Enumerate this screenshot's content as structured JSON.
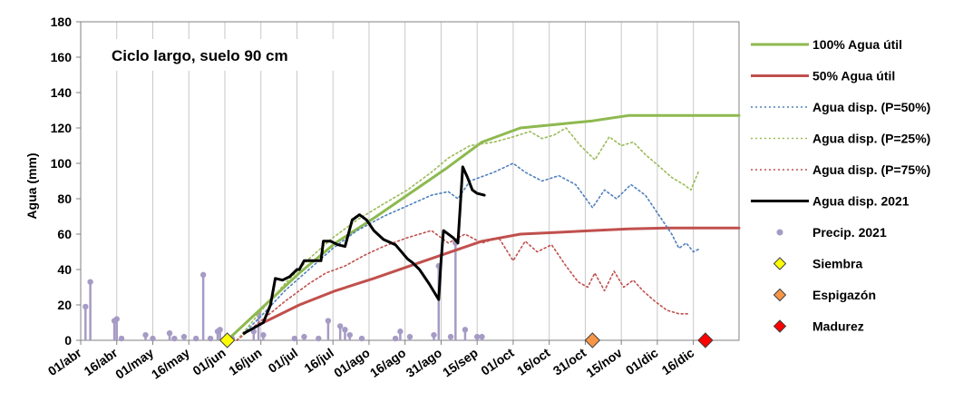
{
  "chart_data": {
    "type": "line",
    "title": "",
    "annotation": "Ciclo largo, suelo 90 cm",
    "xlabel": "",
    "ylabel": "Agua (mm)",
    "ylim": [
      0,
      180
    ],
    "yticks": [
      0,
      20,
      40,
      60,
      80,
      100,
      120,
      140,
      160,
      180
    ],
    "x_axis": {
      "type": "date",
      "start": "2021-04-01",
      "end": "2021-12-31",
      "tick_dates": [
        "2021-04-01",
        "2021-04-16",
        "2021-05-01",
        "2021-05-16",
        "2021-05-31",
        "2021-06-15",
        "2021-06-30",
        "2021-07-15",
        "2021-07-30",
        "2021-08-14",
        "2021-08-29",
        "2021-09-13",
        "2021-09-28",
        "2021-10-13",
        "2021-10-28",
        "2021-11-12",
        "2021-11-27",
        "2021-12-12"
      ],
      "tick_labels": [
        "01/abr",
        "16/abr",
        "01/may",
        "16/may",
        "01/jun",
        "16/jun",
        "01/jul",
        "16/jul",
        "01/ago",
        "16/ago",
        "31/ago",
        "15/sep",
        "01/oct",
        "16/oct",
        "31/oct",
        "15/nov",
        "01/dic",
        "16/dic"
      ]
    },
    "grid": {
      "vertical": true,
      "horizontal": false
    },
    "legend_position": "right",
    "colors": {
      "au100": "#8DB94F",
      "au50": "#C0504D",
      "p50": "#4F81BD",
      "p25": "#9BBB59",
      "p75": "#C0504D",
      "disp2021": "#000000",
      "precip": "#A69BC4",
      "siembra": "#FFFF00",
      "espigazon": "#F79646",
      "madurez": "#FF0000"
    },
    "series": [
      {
        "name": "100% Agua útil",
        "key": "au100",
        "points": [
          [
            "2021-06-01",
            0
          ],
          [
            "2021-06-16",
            19
          ],
          [
            "2021-07-01",
            38
          ],
          [
            "2021-07-16",
            55
          ],
          [
            "2021-08-01",
            69
          ],
          [
            "2021-08-16",
            83
          ],
          [
            "2021-08-31",
            97
          ],
          [
            "2021-09-15",
            112
          ],
          [
            "2021-10-01",
            120
          ],
          [
            "2021-10-16",
            122
          ],
          [
            "2021-10-31",
            124
          ],
          [
            "2021-11-15",
            127
          ],
          [
            "2021-12-01",
            127
          ],
          [
            "2021-12-16",
            127
          ],
          [
            "2021-12-31",
            127
          ]
        ]
      },
      {
        "name": "50% Agua útil",
        "key": "au50",
        "points": [
          [
            "2021-06-16",
            10
          ],
          [
            "2021-07-01",
            20
          ],
          [
            "2021-07-16",
            28
          ],
          [
            "2021-08-01",
            35
          ],
          [
            "2021-08-16",
            42
          ],
          [
            "2021-08-31",
            49
          ],
          [
            "2021-09-15",
            56
          ],
          [
            "2021-10-01",
            60
          ],
          [
            "2021-10-16",
            61
          ],
          [
            "2021-10-31",
            62
          ],
          [
            "2021-11-15",
            63
          ],
          [
            "2021-12-01",
            63.5
          ],
          [
            "2021-12-31",
            63.5
          ]
        ]
      },
      {
        "name": "Agua disp. (P=50%)",
        "key": "p50",
        "points": [
          [
            "2021-06-05",
            0
          ],
          [
            "2021-06-16",
            15
          ],
          [
            "2021-06-25",
            28
          ],
          [
            "2021-07-05",
            40
          ],
          [
            "2021-07-15",
            52
          ],
          [
            "2021-07-25",
            62
          ],
          [
            "2021-08-05",
            70
          ],
          [
            "2021-08-15",
            76
          ],
          [
            "2021-08-25",
            82
          ],
          [
            "2021-09-01",
            84
          ],
          [
            "2021-09-05",
            80
          ],
          [
            "2021-09-10",
            90
          ],
          [
            "2021-09-20",
            95
          ],
          [
            "2021-09-28",
            100
          ],
          [
            "2021-10-03",
            95
          ],
          [
            "2021-10-10",
            90
          ],
          [
            "2021-10-17",
            93
          ],
          [
            "2021-10-24",
            88
          ],
          [
            "2021-10-31",
            75
          ],
          [
            "2021-11-05",
            85
          ],
          [
            "2021-11-10",
            80
          ],
          [
            "2021-11-16",
            88
          ],
          [
            "2021-11-22",
            82
          ],
          [
            "2021-11-28",
            70
          ],
          [
            "2021-12-03",
            60
          ],
          [
            "2021-12-06",
            52
          ],
          [
            "2021-12-09",
            55
          ],
          [
            "2021-12-12",
            50
          ],
          [
            "2021-12-15",
            52
          ]
        ]
      },
      {
        "name": "Agua disp. (P=25%)",
        "key": "p25",
        "points": [
          [
            "2021-06-05",
            0
          ],
          [
            "2021-06-16",
            18
          ],
          [
            "2021-06-25",
            32
          ],
          [
            "2021-07-05",
            46
          ],
          [
            "2021-07-15",
            58
          ],
          [
            "2021-07-25",
            68
          ],
          [
            "2021-08-05",
            77
          ],
          [
            "2021-08-15",
            85
          ],
          [
            "2021-08-25",
            95
          ],
          [
            "2021-09-01",
            103
          ],
          [
            "2021-09-10",
            110
          ],
          [
            "2021-09-20",
            112
          ],
          [
            "2021-09-28",
            115
          ],
          [
            "2021-10-05",
            118
          ],
          [
            "2021-10-10",
            114
          ],
          [
            "2021-10-15",
            116
          ],
          [
            "2021-10-20",
            120
          ],
          [
            "2021-10-26",
            110
          ],
          [
            "2021-11-01",
            102
          ],
          [
            "2021-11-07",
            115
          ],
          [
            "2021-11-12",
            110
          ],
          [
            "2021-11-17",
            112
          ],
          [
            "2021-11-22",
            105
          ],
          [
            "2021-11-28",
            98
          ],
          [
            "2021-12-03",
            92
          ],
          [
            "2021-12-08",
            88
          ],
          [
            "2021-12-11",
            85
          ],
          [
            "2021-12-14",
            95
          ]
        ]
      },
      {
        "name": "Agua disp. (P=75%)",
        "key": "p75",
        "points": [
          [
            "2021-06-05",
            0
          ],
          [
            "2021-06-16",
            12
          ],
          [
            "2021-06-25",
            22
          ],
          [
            "2021-07-05",
            32
          ],
          [
            "2021-07-12",
            38
          ],
          [
            "2021-07-20",
            42
          ],
          [
            "2021-07-28",
            48
          ],
          [
            "2021-08-05",
            53
          ],
          [
            "2021-08-15",
            58
          ],
          [
            "2021-08-25",
            62
          ],
          [
            "2021-09-01",
            55
          ],
          [
            "2021-09-08",
            60
          ],
          [
            "2021-09-15",
            55
          ],
          [
            "2021-09-22",
            58
          ],
          [
            "2021-09-28",
            45
          ],
          [
            "2021-10-03",
            56
          ],
          [
            "2021-10-08",
            50
          ],
          [
            "2021-10-14",
            54
          ],
          [
            "2021-10-20",
            42
          ],
          [
            "2021-10-25",
            33
          ],
          [
            "2021-10-29",
            30
          ],
          [
            "2021-11-01",
            38
          ],
          [
            "2021-11-05",
            28
          ],
          [
            "2021-11-09",
            39
          ],
          [
            "2021-11-13",
            30
          ],
          [
            "2021-11-17",
            34
          ],
          [
            "2021-11-21",
            28
          ],
          [
            "2021-11-26",
            22
          ],
          [
            "2021-12-01",
            17
          ],
          [
            "2021-12-06",
            15
          ],
          [
            "2021-12-10",
            15
          ]
        ]
      },
      {
        "name": "Agua disp. 2021",
        "key": "disp2021",
        "points": [
          [
            "2021-06-08",
            4
          ],
          [
            "2021-06-12",
            7
          ],
          [
            "2021-06-16",
            10
          ],
          [
            "2021-06-19",
            20
          ],
          [
            "2021-06-21",
            35
          ],
          [
            "2021-06-24",
            34
          ],
          [
            "2021-06-27",
            36
          ],
          [
            "2021-06-30",
            40
          ],
          [
            "2021-07-01",
            40
          ],
          [
            "2021-07-03",
            45
          ],
          [
            "2021-07-07",
            45
          ],
          [
            "2021-07-10",
            45
          ],
          [
            "2021-07-11",
            56
          ],
          [
            "2021-07-14",
            56
          ],
          [
            "2021-07-17",
            54
          ],
          [
            "2021-07-20",
            53
          ],
          [
            "2021-07-23",
            68
          ],
          [
            "2021-07-26",
            71
          ],
          [
            "2021-07-29",
            68
          ],
          [
            "2021-08-01",
            62
          ],
          [
            "2021-08-05",
            57
          ],
          [
            "2021-08-10",
            54
          ],
          [
            "2021-08-15",
            46
          ],
          [
            "2021-08-17",
            44
          ],
          [
            "2021-08-20",
            40
          ],
          [
            "2021-08-24",
            32
          ],
          [
            "2021-08-28",
            23
          ],
          [
            "2021-08-29",
            45
          ],
          [
            "2021-08-30",
            62
          ],
          [
            "2021-09-03",
            58
          ],
          [
            "2021-09-05",
            55
          ],
          [
            "2021-09-07",
            98
          ],
          [
            "2021-09-09",
            92
          ],
          [
            "2021-09-11",
            85
          ],
          [
            "2021-09-13",
            83
          ],
          [
            "2021-09-16",
            82
          ]
        ]
      }
    ],
    "precipitation": {
      "name": "Precip. 2021",
      "points": [
        [
          "2021-04-03",
          19
        ],
        [
          "2021-04-05",
          33
        ],
        [
          "2021-04-15",
          11
        ],
        [
          "2021-04-16",
          12
        ],
        [
          "2021-04-18",
          1
        ],
        [
          "2021-04-28",
          3
        ],
        [
          "2021-05-01",
          1
        ],
        [
          "2021-05-08",
          4
        ],
        [
          "2021-05-10",
          1
        ],
        [
          "2021-05-14",
          2
        ],
        [
          "2021-05-19",
          1
        ],
        [
          "2021-05-22",
          37
        ],
        [
          "2021-05-25",
          1
        ],
        [
          "2021-05-28",
          5
        ],
        [
          "2021-05-29",
          6
        ],
        [
          "2021-06-03",
          1
        ],
        [
          "2021-06-12",
          5
        ],
        [
          "2021-06-14",
          15
        ],
        [
          "2021-06-16",
          3
        ],
        [
          "2021-06-29",
          1
        ],
        [
          "2021-07-03",
          2
        ],
        [
          "2021-07-09",
          1
        ],
        [
          "2021-07-13",
          11
        ],
        [
          "2021-07-18",
          8
        ],
        [
          "2021-07-20",
          6
        ],
        [
          "2021-07-22",
          3
        ],
        [
          "2021-07-27",
          1
        ],
        [
          "2021-08-10",
          1
        ],
        [
          "2021-08-12",
          5
        ],
        [
          "2021-08-16",
          2
        ],
        [
          "2021-08-26",
          3
        ],
        [
          "2021-08-28",
          42
        ],
        [
          "2021-09-02",
          2
        ],
        [
          "2021-09-04",
          55
        ],
        [
          "2021-09-08",
          6
        ],
        [
          "2021-09-13",
          2
        ],
        [
          "2021-09-15",
          2
        ]
      ]
    },
    "markers": [
      {
        "name": "Siembra",
        "key": "siembra",
        "date": "2021-06-01",
        "y": 0
      },
      {
        "name": "Espigazón",
        "key": "espigazon",
        "date": "2021-10-31",
        "y": 0
      },
      {
        "name": "Madurez",
        "key": "madurez",
        "date": "2021-12-17",
        "y": 0
      }
    ]
  }
}
